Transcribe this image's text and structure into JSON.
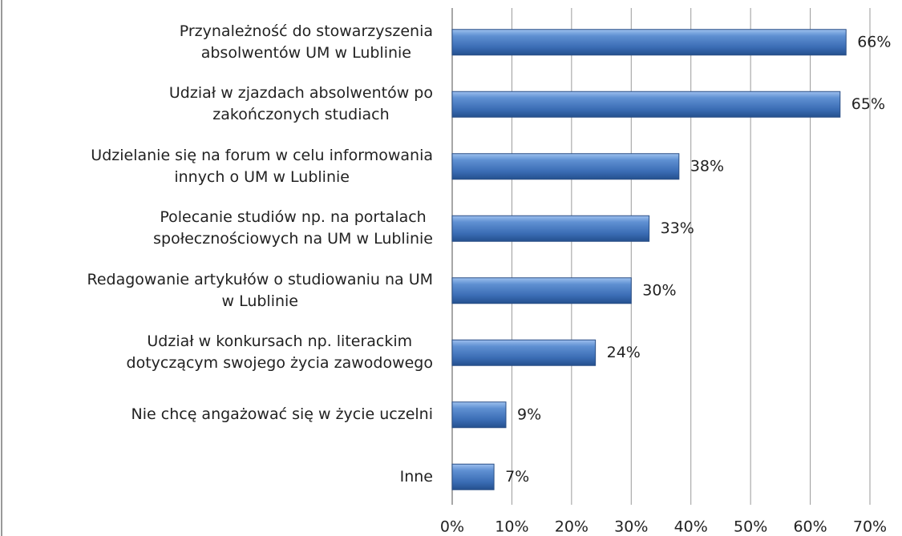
{
  "chart_data": {
    "type": "barh",
    "categories": [
      "Przynależność do stowarzyszenia\nabsolwentów UM w Lublinie",
      "Udział w zjazdach absolwentów po\nzakończonych studiach",
      "Udzielanie się na forum w celu informowania\ninnych o UM w Lublinie",
      "Polecanie studiów np. na portalach\nspołecznościowych na UM w Lublinie",
      "Redagowanie artykułów o studiowaniu na UM\nw Lublinie",
      "Udział w konkursach np. literackim\ndotyczącym swojego życia zawodowego",
      "Nie chcę angażować się w życie uczelni",
      "Inne"
    ],
    "values": [
      66,
      65,
      38,
      33,
      30,
      24,
      9,
      7
    ],
    "value_labels": [
      "66%",
      "65%",
      "38%",
      "33%",
      "30%",
      "24%",
      "9%",
      "7%"
    ],
    "color": "#4a7ebb",
    "xlim": [
      0,
      70
    ],
    "xticks": [
      {
        "value": 0,
        "label": "0%"
      },
      {
        "value": 10,
        "label": "10%"
      },
      {
        "value": 20,
        "label": "20%"
      },
      {
        "value": 30,
        "label": "30%"
      },
      {
        "value": 40,
        "label": "40%"
      },
      {
        "value": 50,
        "label": "50%"
      },
      {
        "value": 60,
        "label": "60%"
      },
      {
        "value": 70,
        "label": "70%"
      }
    ],
    "grid": true
  }
}
